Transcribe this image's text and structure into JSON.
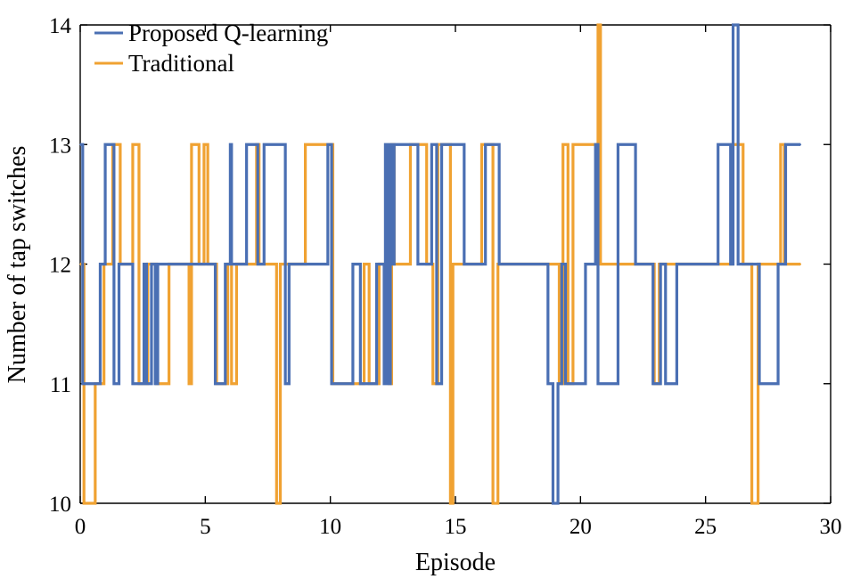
{
  "chart_data": {
    "type": "line",
    "title": "",
    "xlabel": "Episode",
    "ylabel": "Number of tap switches",
    "xlim": [
      0,
      30
    ],
    "ylim": [
      10,
      14
    ],
    "xticks": [
      "0",
      "5",
      "10",
      "15",
      "20",
      "25",
      "30"
    ],
    "yticks": [
      "10",
      "11",
      "12",
      "13",
      "14"
    ],
    "legend_position": "top-left",
    "step": true,
    "series": [
      {
        "name": "Proposed Q-learning",
        "color": "#4a6fb3",
        "x": [
          0,
          0.1,
          0.3,
          0.8,
          1.0,
          1.2,
          1.35,
          1.55,
          2.1,
          2.3,
          2.55,
          2.65,
          2.85,
          3.0,
          3.1,
          5.1,
          5.4,
          5.55,
          5.8,
          6.0,
          6.05,
          6.35,
          6.65,
          6.95,
          7.1,
          7.35,
          7.85,
          8.2,
          8.35,
          9.1,
          9.9,
          10.05,
          10.75,
          10.9,
          11.2,
          11.5,
          11.85,
          12.15,
          12.2,
          12.3,
          12.4,
          12.45,
          12.55,
          12.75,
          13.5,
          13.75,
          14.05,
          14.25,
          14.45,
          14.85,
          15.35,
          15.6,
          16.2,
          16.75,
          18.6,
          18.7,
          18.9,
          19.1,
          19.25,
          19.4,
          20.2,
          20.4,
          20.6,
          20.7,
          21.5,
          21.85,
          22.2,
          22.5,
          22.9,
          23.05,
          23.2,
          23.4,
          23.85,
          24.75,
          25.5,
          25.9,
          26.0,
          26.1,
          26.3,
          26.5,
          27.15,
          27.75,
          27.9,
          28.2,
          28.8
        ],
        "values": [
          13,
          11,
          11,
          12,
          13,
          13,
          11,
          12,
          11,
          11,
          12,
          11,
          12,
          11,
          12,
          12,
          11,
          11,
          12,
          13,
          12,
          12,
          13,
          13,
          12,
          13,
          13,
          11,
          12,
          12,
          13,
          11,
          11,
          12,
          11,
          11,
          12,
          11,
          13,
          11,
          13,
          12,
          13,
          13,
          12,
          12,
          13,
          11,
          13,
          13,
          12,
          12,
          13,
          12,
          12,
          11,
          10,
          11,
          12,
          11,
          12,
          12,
          13,
          11,
          13,
          13,
          12,
          12,
          11,
          11,
          12,
          11,
          12,
          12,
          13,
          13,
          12,
          14,
          12,
          12,
          11,
          11,
          12,
          13,
          13
        ]
      },
      {
        "name": "Traditional",
        "color": "#f0a232",
        "x": [
          0,
          0.15,
          0.6,
          0.95,
          1.3,
          1.6,
          1.8,
          2.1,
          2.35,
          2.7,
          3.05,
          3.2,
          3.55,
          4.35,
          4.45,
          4.75,
          4.95,
          5.1,
          5.2,
          5.45,
          5.9,
          6.05,
          6.25,
          6.95,
          7.05,
          7.15,
          7.45,
          7.85,
          8.0,
          9.0,
          9.15,
          9.7,
          10.1,
          11.35,
          11.55,
          11.95,
          12.35,
          12.45,
          12.55,
          12.65,
          13.2,
          13.45,
          13.85,
          14.1,
          14.3,
          14.8,
          14.9,
          16.05,
          16.3,
          16.5,
          16.7,
          17.0,
          19.15,
          19.3,
          19.5,
          19.7,
          20.55,
          20.7,
          20.8,
          21.0,
          21.5,
          22.95,
          23.15,
          23.35,
          24.75,
          25.0,
          25.7,
          26.05,
          26.5,
          26.85,
          27.1,
          27.45,
          27.65,
          28.0,
          28.15,
          28.8
        ],
        "values": [
          12,
          10,
          11,
          12,
          13,
          12,
          12,
          13,
          11,
          12,
          11,
          11,
          12,
          11,
          13,
          12,
          13,
          12,
          12,
          11,
          12,
          11,
          12,
          12,
          13,
          12,
          12,
          10,
          12,
          13,
          13,
          13,
          11,
          12,
          11,
          12,
          11,
          13,
          12,
          12,
          13,
          13,
          12,
          11,
          13,
          10,
          12,
          13,
          13,
          10,
          12,
          12,
          11,
          13,
          11,
          13,
          13,
          14,
          12,
          12,
          12,
          11,
          12,
          12,
          12,
          12,
          12,
          13,
          12,
          10,
          12,
          12,
          12,
          13,
          12,
          12
        ]
      }
    ]
  }
}
